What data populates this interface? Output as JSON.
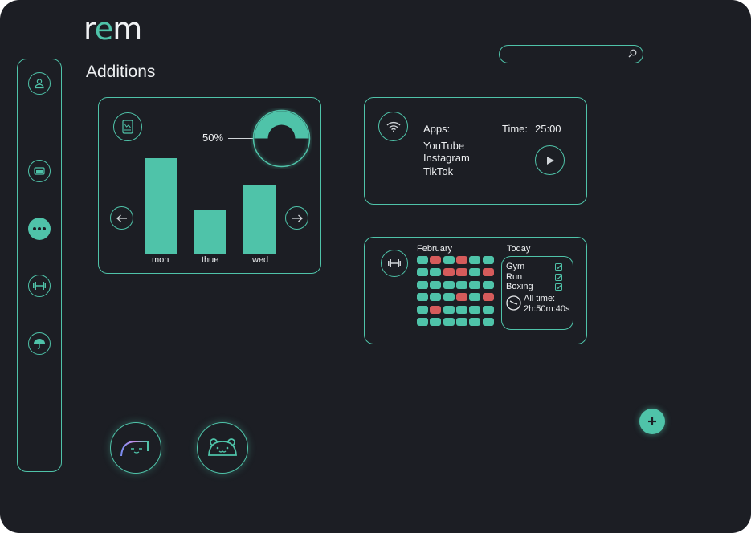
{
  "app": {
    "logo_r": "r",
    "logo_e": "e",
    "logo_m": "m",
    "page_title": "Additions"
  },
  "search": {
    "placeholder": ""
  },
  "sidebar": {
    "items": [
      "profile-icon",
      "card-icon",
      "more-icon",
      "dumbbell-icon",
      "umbrella-icon"
    ],
    "active_index": 2
  },
  "stats_card": {
    "percent_label": "50%",
    "percent_value": 50,
    "bars": [
      {
        "label": "mon",
        "value": 100
      },
      {
        "label": "thue",
        "value": 46
      },
      {
        "label": "wed",
        "value": 72
      }
    ]
  },
  "apps_card": {
    "apps_label": "Apps:",
    "apps": [
      "YouTube",
      "Instagram",
      "TikTok"
    ],
    "time_label": "Time:",
    "time_value": "25:00"
  },
  "habit_card": {
    "month_label": "February",
    "today_label": "Today",
    "grid": [
      [
        "g",
        "r",
        "g",
        "r",
        "g",
        "g"
      ],
      [
        "g",
        "g",
        "r",
        "r",
        "g",
        "r"
      ],
      [
        "g",
        "g",
        "g",
        "g",
        "g",
        "g"
      ],
      [
        "g",
        "g",
        "g",
        "r",
        "g",
        "r"
      ],
      [
        "g",
        "r",
        "g",
        "g",
        "g",
        "g"
      ],
      [
        "g",
        "g",
        "g",
        "g",
        "g",
        "g"
      ]
    ],
    "today_items": [
      "Gym",
      "Run",
      "Boxing"
    ],
    "all_time_label": "All time:",
    "all_time_value": "2h:50m:40s"
  },
  "colors": {
    "background": "#1c1e24",
    "accent": "#4fc3a9",
    "miss": "#d65b5b"
  }
}
